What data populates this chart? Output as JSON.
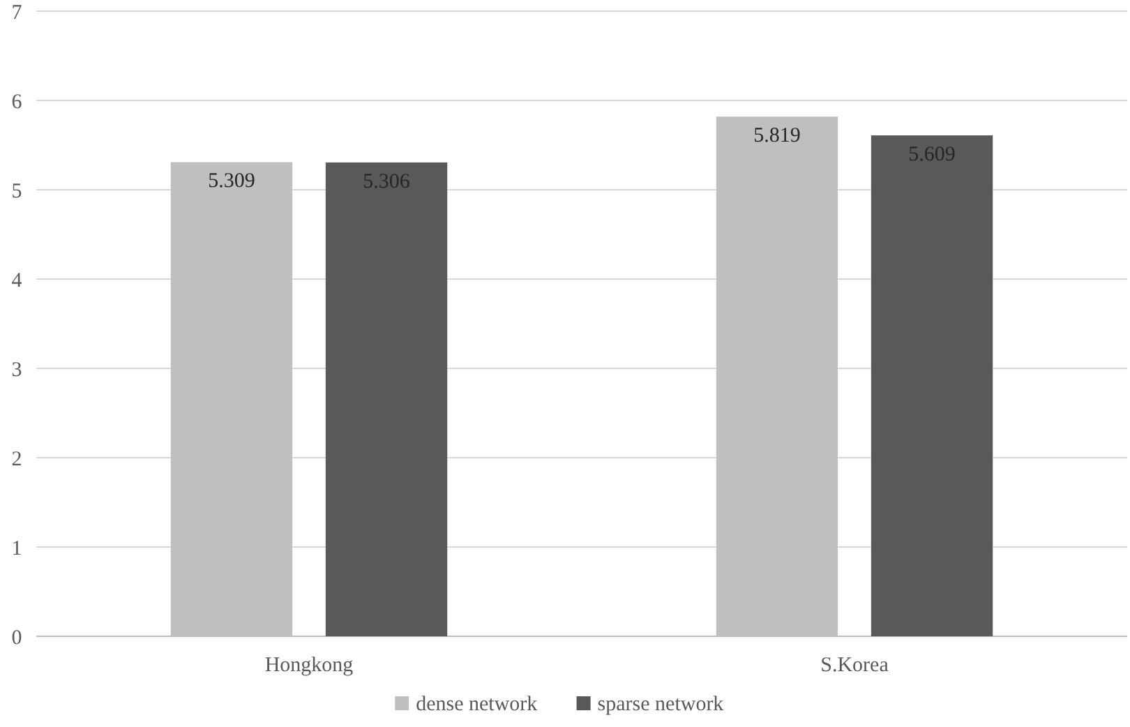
{
  "chart_data": {
    "type": "bar",
    "categories": [
      "Hongkong",
      "S.Korea"
    ],
    "series": [
      {
        "name": "dense network",
        "color": "#bfbfbf",
        "values": [
          5.309,
          5.819
        ]
      },
      {
        "name": "sparse network",
        "color": "#595959",
        "values": [
          5.306,
          5.609
        ]
      }
    ],
    "ylim": [
      0,
      7
    ],
    "yticks": [
      0,
      1,
      2,
      3,
      4,
      5,
      6,
      7
    ],
    "grid": "y",
    "legend": "bottom",
    "data_labels": true
  }
}
